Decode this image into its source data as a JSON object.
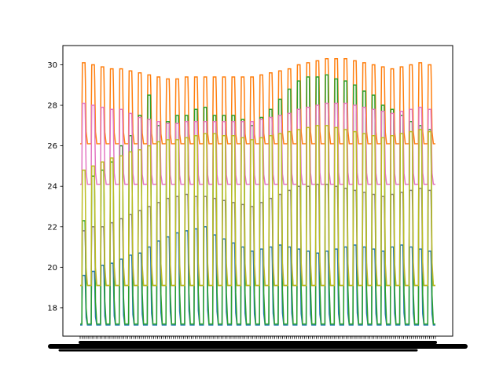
{
  "chart_data": {
    "type": "line",
    "title": "",
    "xlabel": "",
    "ylabel": "",
    "ylim": [
      16.6,
      30.95
    ],
    "yticks": [
      18,
      20,
      22,
      24,
      26,
      28,
      30
    ],
    "ytick_labels": [
      "18",
      "20",
      "22",
      "24",
      "26",
      "28",
      "30"
    ],
    "x_tick_labels": "illegible (overlapping labels)",
    "grid": false,
    "legend": "none",
    "num_cycles": 38,
    "series": [
      {
        "name": "",
        "color": "#1f77b4",
        "base": 17.15,
        "peaks": [
          19.6,
          19.8,
          20.1,
          20.2,
          20.4,
          20.6,
          20.7,
          21.0,
          21.3,
          21.5,
          21.7,
          21.8,
          21.9,
          22.0,
          21.6,
          21.4,
          21.2,
          21.0,
          20.8,
          20.9,
          21.0,
          21.1,
          21.0,
          20.9,
          20.8,
          20.7,
          20.8,
          20.9,
          21.0,
          21.1,
          21.0,
          20.9,
          20.8,
          21.0,
          21.1,
          21.0,
          20.9,
          20.8
        ]
      },
      {
        "name": "",
        "color": "#ff7f0e",
        "base": 26.1,
        "peaks": [
          30.1,
          30.0,
          29.9,
          29.8,
          29.8,
          29.7,
          29.6,
          29.5,
          29.4,
          29.3,
          29.3,
          29.4,
          29.4,
          29.4,
          29.4,
          29.4,
          29.4,
          29.4,
          29.4,
          29.5,
          29.6,
          29.7,
          29.8,
          30.0,
          30.1,
          30.2,
          30.3,
          30.3,
          30.3,
          30.2,
          30.1,
          30.0,
          29.9,
          29.8,
          29.9,
          30.0,
          30.1,
          30.0
        ]
      },
      {
        "name": "",
        "color": "#2ca02c",
        "base": 17.2,
        "peaks": [
          22.3,
          24.5,
          24.8,
          25.2,
          26.0,
          26.5,
          27.5,
          28.5,
          27.0,
          27.2,
          27.5,
          27.5,
          27.8,
          27.9,
          27.5,
          27.5,
          27.5,
          27.3,
          27.0,
          27.4,
          27.8,
          28.3,
          28.8,
          29.2,
          29.4,
          29.4,
          29.5,
          29.3,
          29.2,
          29.0,
          28.7,
          28.5,
          28.0,
          27.8,
          27.5,
          27.2,
          27.0,
          26.8
        ]
      },
      {
        "name": "",
        "color": "#e377c2",
        "base": 24.1,
        "peaks": [
          28.1,
          28.0,
          27.9,
          27.8,
          27.8,
          27.6,
          27.4,
          27.3,
          27.2,
          27.1,
          27.1,
          27.2,
          27.2,
          27.2,
          27.2,
          27.2,
          27.2,
          27.2,
          27.2,
          27.3,
          27.4,
          27.5,
          27.6,
          27.8,
          27.9,
          28.0,
          28.1,
          28.1,
          28.1,
          28.0,
          27.9,
          27.8,
          27.7,
          27.6,
          27.7,
          27.8,
          27.9,
          27.8
        ]
      },
      {
        "name": "",
        "color": "#7f7f7f",
        "base": 19.1,
        "peaks": [
          21.8,
          22.0,
          22.0,
          22.2,
          22.4,
          22.6,
          22.8,
          23.0,
          23.2,
          23.4,
          23.5,
          23.6,
          23.5,
          23.5,
          23.4,
          23.3,
          23.2,
          23.1,
          23.0,
          23.2,
          23.4,
          23.6,
          23.8,
          24.0,
          24.0,
          24.1,
          24.1,
          24.0,
          23.9,
          23.8,
          23.7,
          23.6,
          23.5,
          23.6,
          23.7,
          23.8,
          23.9,
          23.8
        ]
      },
      {
        "name": "",
        "color": "#bcbd22",
        "base": 19.1,
        "peaks": [
          24.8,
          25.0,
          25.2,
          25.4,
          25.5,
          25.7,
          25.8,
          26.0,
          26.2,
          26.3,
          26.3,
          26.4,
          26.5,
          26.6,
          26.6,
          26.5,
          26.5,
          26.4,
          26.3,
          26.4,
          26.5,
          26.6,
          26.7,
          26.8,
          26.9,
          27.0,
          27.0,
          26.9,
          26.8,
          26.7,
          26.6,
          26.5,
          26.4,
          26.5,
          26.6,
          26.7,
          26.8,
          26.7
        ]
      }
    ]
  }
}
